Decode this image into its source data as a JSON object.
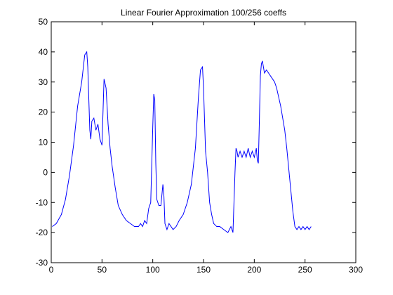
{
  "chart_data": {
    "type": "line",
    "title": "Linear Fourier Approximation 100/256 coeffs",
    "xlabel": "",
    "ylabel": "",
    "xlim": [
      0,
      300
    ],
    "ylim": [
      -30,
      50
    ],
    "xticks": [
      0,
      50,
      100,
      150,
      200,
      250,
      300
    ],
    "yticks": [
      -30,
      -20,
      -10,
      0,
      10,
      20,
      30,
      40,
      50
    ],
    "grid": false,
    "line_color": "#0000ff",
    "series": [
      {
        "x": [
          1,
          5,
          10,
          14,
          18,
          22,
          26,
          30,
          33,
          35,
          36,
          38,
          39,
          40,
          42,
          44,
          46,
          48,
          50,
          52,
          54,
          56,
          58,
          60,
          63,
          66,
          70,
          74,
          78,
          82,
          86,
          88,
          90,
          92,
          94,
          96,
          98,
          100,
          101,
          102,
          103,
          104,
          105,
          106,
          108,
          110,
          111,
          112,
          113,
          114,
          116,
          118,
          120,
          123,
          126,
          130,
          134,
          138,
          142,
          145,
          147,
          149,
          150,
          152,
          154,
          156,
          158,
          160,
          163,
          166,
          170,
          174,
          177,
          179,
          181,
          182,
          183,
          184,
          186,
          188,
          190,
          192,
          194,
          196,
          198,
          200,
          202,
          203,
          204,
          205,
          206,
          207,
          208,
          209,
          210,
          212,
          214,
          216,
          218,
          220,
          222,
          224,
          226,
          228,
          230,
          232,
          234,
          236,
          238,
          240,
          242,
          244,
          246,
          248,
          250,
          252,
          254,
          256
        ],
        "y": [
          -18,
          -17,
          -14,
          -9,
          -1,
          9,
          22,
          30,
          39,
          40,
          35,
          14,
          11,
          17,
          18,
          14,
          16,
          11,
          9,
          31,
          28,
          16,
          8,
          2,
          -5,
          -11,
          -14,
          -16,
          -17,
          -18,
          -18,
          -17,
          -18,
          -16,
          -17,
          -12,
          -10,
          15,
          26,
          24,
          3,
          -9,
          -10,
          -11,
          -11,
          -4,
          -8,
          -17,
          -18,
          -19,
          -17,
          -18,
          -19,
          -18,
          -16,
          -14,
          -10,
          -4,
          8,
          25,
          34,
          35,
          28,
          7,
          0,
          -10,
          -14,
          -17,
          -18,
          -18,
          -19,
          -20,
          -18,
          -20,
          0,
          8,
          7,
          5,
          7,
          5,
          7,
          5,
          8,
          5,
          7,
          5,
          8,
          4,
          3,
          17,
          32,
          36,
          37,
          35,
          33,
          34,
          33,
          32,
          31,
          30,
          28,
          25,
          22,
          18,
          14,
          8,
          1,
          -6,
          -13,
          -18,
          -19,
          -18,
          -19,
          -18,
          -19,
          -18,
          -19,
          -18
        ]
      }
    ]
  }
}
